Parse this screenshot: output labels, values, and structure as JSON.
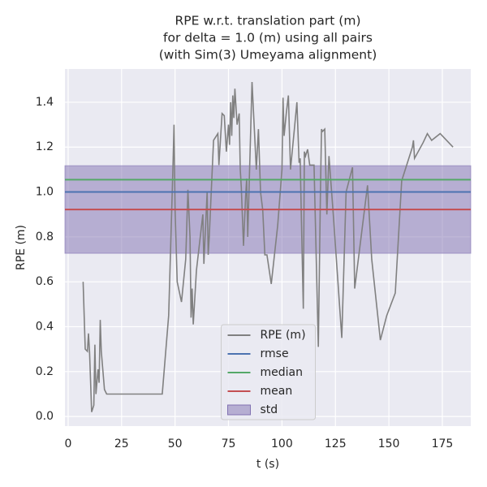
{
  "chart_data": {
    "type": "line",
    "title": [
      "RPE w.r.t. translation part (m)",
      "for delta = 1.0 (m) using all pairs",
      "(with Sim(3) Umeyama alignment)"
    ],
    "xlabel": "t (s)",
    "ylabel": "RPE (m)",
    "xlim": [
      -1.5,
      188.3
    ],
    "ylim": [
      -0.043,
      1.548
    ],
    "xticks": [
      0,
      25,
      50,
      75,
      100,
      125,
      150,
      175
    ],
    "yticks": [
      {
        "value": 0,
        "label": "0.0"
      },
      0.2,
      0.4,
      0.6,
      0.8,
      {
        "value": 1,
        "label": "1.0"
      },
      1.2,
      1.4
    ],
    "grid": true,
    "legend": "lower center",
    "series": [
      {
        "name": "RPE (m)",
        "color": "#808080",
        "x": [
          7,
          8,
          9,
          9.5,
          10,
          11,
          12,
          12.5,
          13,
          14,
          14.5,
          15,
          15.5,
          17,
          18,
          44,
          47,
          49,
          49.5,
          50,
          51,
          53,
          55,
          56,
          57,
          57.5,
          58,
          58.5,
          60,
          63,
          63.5,
          65,
          65.5,
          66,
          68,
          70,
          70.5,
          72,
          73,
          74,
          75,
          75.5,
          76,
          76.5,
          77,
          77.5,
          78,
          79,
          80,
          80.5,
          81,
          82,
          83,
          83.5,
          84,
          85,
          86,
          88,
          89,
          90,
          91,
          92,
          93,
          95,
          98,
          100,
          100.5,
          101,
          102,
          103,
          104,
          106,
          107,
          108,
          108.5,
          109,
          110,
          110.5,
          111,
          112,
          113,
          115,
          117,
          118,
          118.5,
          119,
          120,
          121,
          122,
          124,
          128,
          130,
          133,
          134,
          140,
          142,
          146,
          149,
          153,
          156,
          161,
          161.5,
          162,
          166,
          168,
          170,
          174,
          180
        ],
        "values": [
          0.6,
          0.3,
          0.29,
          0.37,
          0.29,
          0.02,
          0.05,
          0.32,
          0.1,
          0.21,
          0.15,
          0.43,
          0.29,
          0.12,
          0.1,
          0.1,
          0.45,
          1.1,
          1.3,
          0.92,
          0.6,
          0.51,
          0.7,
          1.01,
          0.8,
          0.44,
          0.57,
          0.41,
          0.65,
          0.9,
          0.68,
          1.0,
          0.72,
          0.8,
          1.23,
          1.26,
          1.12,
          1.35,
          1.34,
          1.18,
          1.3,
          1.21,
          1.4,
          1.25,
          1.43,
          1.33,
          1.46,
          1.3,
          1.35,
          1.1,
          1.02,
          0.76,
          0.98,
          1.06,
          0.8,
          1.15,
          1.49,
          1.1,
          1.28,
          1.0,
          0.92,
          0.72,
          0.72,
          0.59,
          0.85,
          1.1,
          1.42,
          1.25,
          1.35,
          1.43,
          1.1,
          1.3,
          1.4,
          1.13,
          1.15,
          0.92,
          0.48,
          1.18,
          1.16,
          1.19,
          1.12,
          1.12,
          0.31,
          1.0,
          1.28,
          1.27,
          1.28,
          0.9,
          1.16,
          0.9,
          0.35,
          1.0,
          1.11,
          0.57,
          1.03,
          0.7,
          0.34,
          0.45,
          0.55,
          1.05,
          1.2,
          1.23,
          1.15,
          1.22,
          1.26,
          1.23,
          1.26,
          1.2
        ]
      }
    ],
    "lines": [
      {
        "name": "rmse",
        "color": "#4c72b0",
        "value": 1.0
      },
      {
        "name": "median",
        "color": "#55a868",
        "value": 1.055
      },
      {
        "name": "mean",
        "color": "#c44e52",
        "value": 0.922
      }
    ],
    "band": {
      "name": "std",
      "color": "#8172b2",
      "value": 0.195
    }
  }
}
